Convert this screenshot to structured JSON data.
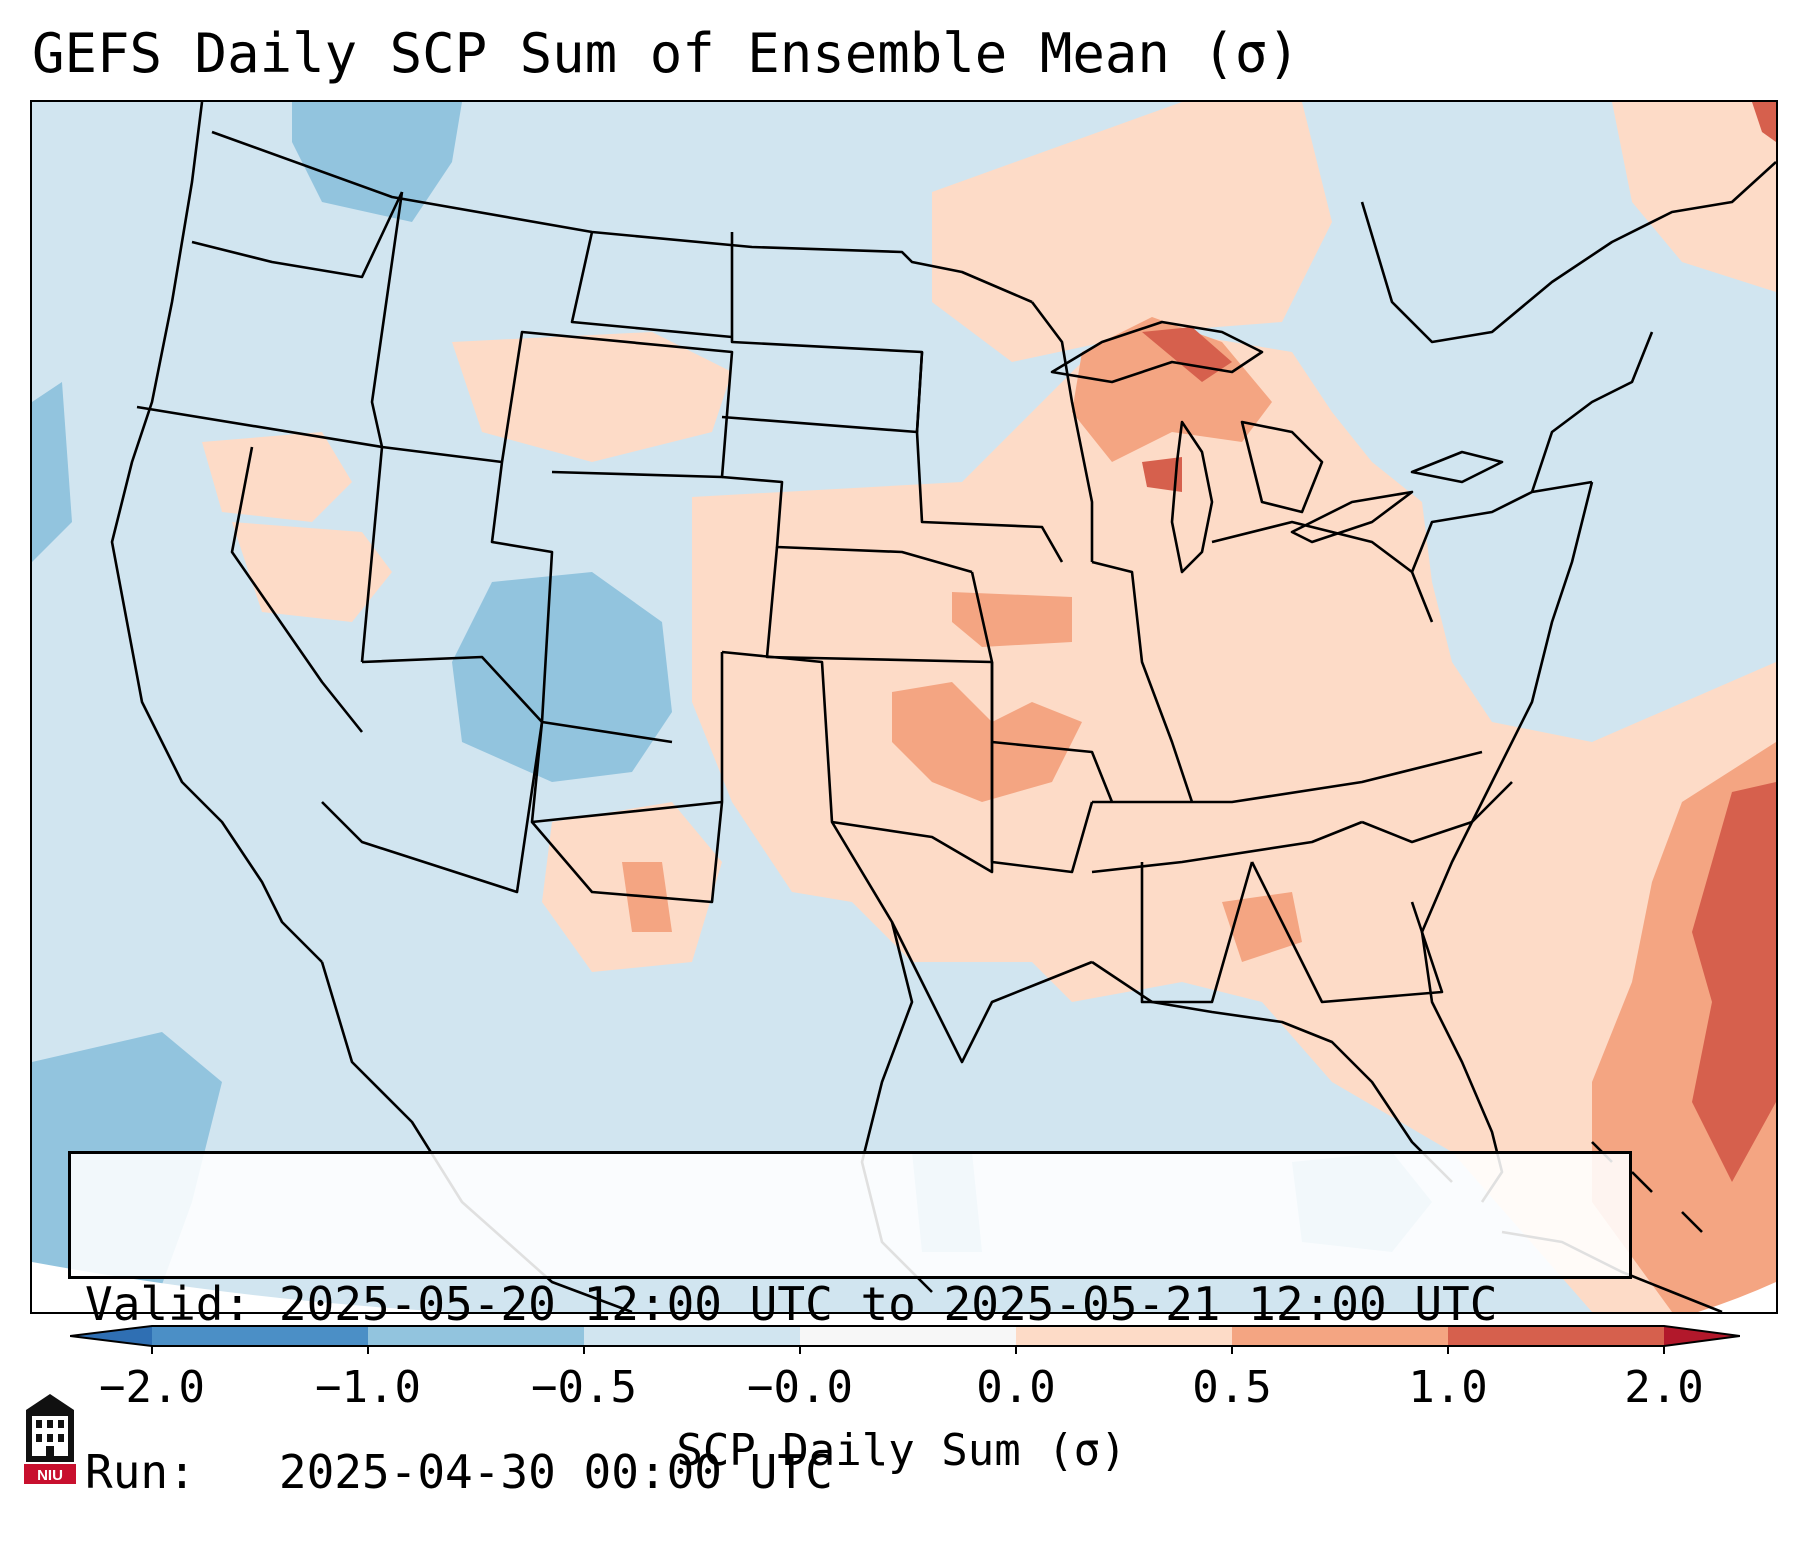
{
  "title": "GEFS Daily SCP Sum of Ensemble Mean (σ)",
  "info": {
    "valid_label": "Valid:",
    "valid_value": "2025-05-20 12:00 UTC to 2025-05-21 12:00 UTC",
    "run_label": "Run:",
    "run_value": "2025-04-30 00:00 UTC"
  },
  "colorbar": {
    "label": "SCP Daily Sum (σ)",
    "ticks": [
      "−2.0",
      "−1.0",
      "−0.5",
      "−0.0",
      "0.0",
      "0.5",
      "1.0",
      "2.0"
    ],
    "bins": [
      {
        "range": "< -2.0",
        "color": "#2f6fb3"
      },
      {
        "range": "-2.0 to -1.0",
        "color": "#4b8fc6"
      },
      {
        "range": "-1.0 to -0.5",
        "color": "#92c4de"
      },
      {
        "range": "-0.5 to 0.0",
        "color": "#d1e5f0"
      },
      {
        "range": "0.0 to 0.0",
        "color": "#f7f7f7"
      },
      {
        "range": "0.0 to 0.5",
        "color": "#fddbc7"
      },
      {
        "range": "0.5 to 1.0",
        "color": "#f4a582"
      },
      {
        "range": "1.0 to 2.0",
        "color": "#d6604d"
      },
      {
        "range": "> 2.0",
        "color": "#b2182b"
      }
    ]
  },
  "map": {
    "region": "Contiguous United States",
    "background_color": "#d1e5f0",
    "regions_of_note": [
      {
        "name": "Upper Great Lakes / Michigan",
        "category": "0.5 to 1.0"
      },
      {
        "name": "Central Plains (Kansas / Missouri)",
        "category": "0.5 to 1.0"
      },
      {
        "name": "Western Atlantic",
        "category": "1.0 to 2.0"
      },
      {
        "name": "Colorado / Utah",
        "category": "-1.0 to -0.5"
      }
    ]
  },
  "logo": {
    "name": "NIU"
  }
}
